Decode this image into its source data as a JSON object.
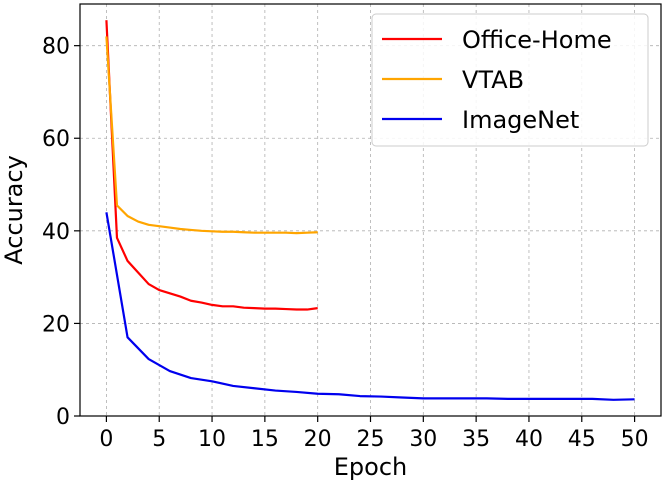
{
  "chart_data": {
    "type": "line",
    "title": "",
    "xlabel": "Epoch",
    "ylabel": "Accuracy",
    "xlim": [
      -2.5,
      52.5
    ],
    "ylim": [
      0,
      89
    ],
    "xticks": [
      0,
      5,
      10,
      15,
      20,
      25,
      30,
      35,
      40,
      45,
      50
    ],
    "yticks": [
      0,
      20,
      40,
      60,
      80
    ],
    "grid": true,
    "legend_position": "top-right",
    "series": [
      {
        "name": "Office-Home",
        "color": "#ff0000",
        "x": [
          0,
          1,
          2,
          3,
          4,
          5,
          6,
          7,
          8,
          9,
          10,
          11,
          12,
          13,
          14,
          15,
          16,
          17,
          18,
          19,
          20
        ],
        "y": [
          85.5,
          38.5,
          33.5,
          31.0,
          28.5,
          27.2,
          26.5,
          25.8,
          24.9,
          24.5,
          24.0,
          23.7,
          23.7,
          23.4,
          23.3,
          23.2,
          23.2,
          23.1,
          23.0,
          23.0,
          23.3
        ]
      },
      {
        "name": "VTAB",
        "color": "#ffa500",
        "x": [
          0,
          1,
          2,
          3,
          4,
          5,
          6,
          7,
          8,
          9,
          10,
          11,
          12,
          13,
          14,
          15,
          16,
          17,
          18,
          19,
          20
        ],
        "y": [
          82.0,
          45.5,
          43.2,
          42.0,
          41.3,
          41.0,
          40.7,
          40.4,
          40.2,
          40.0,
          39.9,
          39.8,
          39.8,
          39.7,
          39.6,
          39.6,
          39.6,
          39.6,
          39.5,
          39.6,
          39.7
        ]
      },
      {
        "name": "ImageNet",
        "color": "#0000ee",
        "x": [
          0,
          2,
          4,
          6,
          8,
          10,
          12,
          14,
          16,
          18,
          20,
          22,
          24,
          26,
          28,
          30,
          32,
          34,
          36,
          38,
          40,
          42,
          44,
          46,
          48,
          50
        ],
        "y": [
          44.0,
          17.0,
          12.3,
          9.7,
          8.2,
          7.5,
          6.5,
          6.0,
          5.5,
          5.2,
          4.8,
          4.7,
          4.3,
          4.2,
          4.0,
          3.8,
          3.8,
          3.8,
          3.8,
          3.7,
          3.7,
          3.7,
          3.7,
          3.7,
          3.5,
          3.6
        ]
      }
    ]
  }
}
